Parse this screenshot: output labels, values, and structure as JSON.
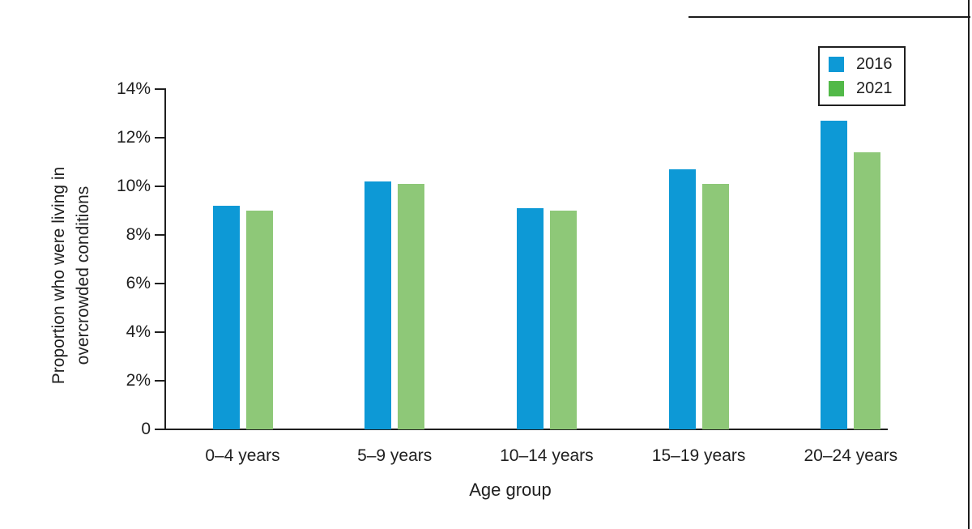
{
  "chart_data": {
    "type": "bar",
    "title": "",
    "categories": [
      "0–4 years",
      "5–9 years",
      "10–14 years",
      "15–19 years",
      "20–24 years"
    ],
    "series": [
      {
        "name": "2016",
        "color": "#0d99d6",
        "legend_color": "#0d99d6",
        "values": [
          9.2,
          10.2,
          9.1,
          10.7,
          12.7
        ]
      },
      {
        "name": "2021",
        "color": "#8ec878",
        "legend_color": "#52b948",
        "values": [
          9.0,
          10.1,
          9.0,
          10.1,
          11.4
        ]
      }
    ],
    "xlabel": "Age group",
    "ylabel_line1": "Proportion who were living in",
    "ylabel_line2": "overcrowded conditions",
    "y_tick_labels": [
      "14%",
      "12%",
      "10%",
      "8%",
      "6%",
      "4%",
      "2%",
      "0"
    ],
    "y_tick_values": [
      14,
      12,
      10,
      8,
      6,
      4,
      2,
      0
    ],
    "ylim": [
      0,
      14
    ],
    "grid": false,
    "legend_position": "top-right"
  }
}
